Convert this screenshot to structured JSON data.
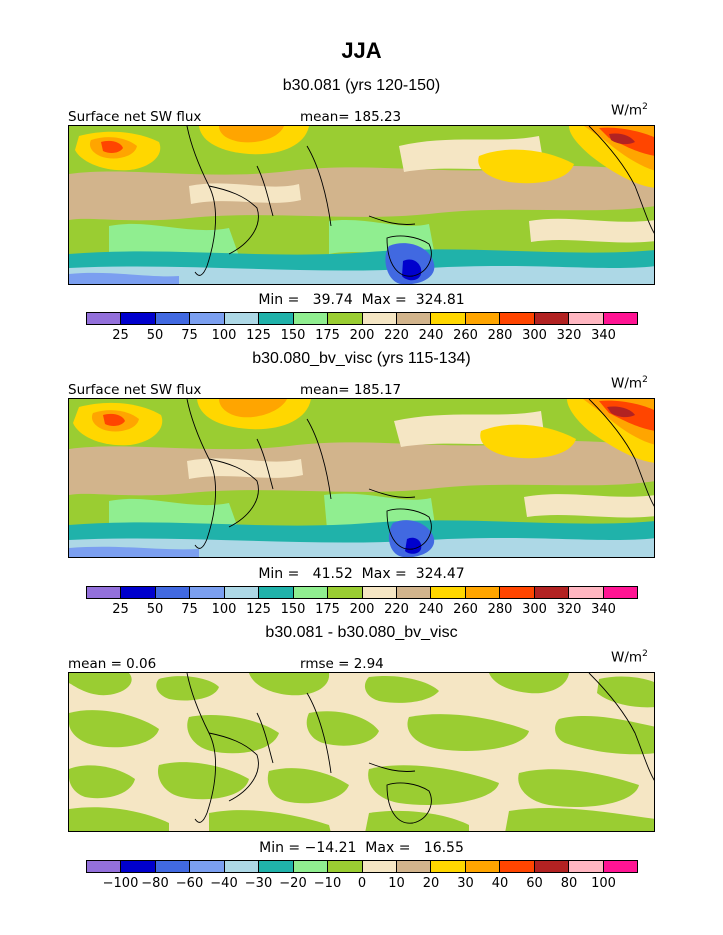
{
  "figure": {
    "season": "JJA"
  },
  "panels": [
    {
      "subtitle": "b30.081 (yrs 120-150)",
      "left_label": "Surface net SW flux",
      "center_label": "mean=  185.23",
      "units_base": "W/m",
      "units_sup": "2",
      "minmax": "Min =   39.74  Max =  324.81",
      "colorbar_ticks": [
        "25",
        "50",
        "75",
        "100",
        "125",
        "150",
        "175",
        "200",
        "220",
        "240",
        "260",
        "280",
        "300",
        "320",
        "340"
      ]
    },
    {
      "subtitle": "b30.080_bv_visc (yrs 115-134)",
      "left_label": "Surface net SW flux",
      "center_label": "mean=  185.17",
      "units_base": "W/m",
      "units_sup": "2",
      "minmax": "Min =   41.52  Max =  324.47",
      "colorbar_ticks": [
        "25",
        "50",
        "75",
        "100",
        "125",
        "150",
        "175",
        "200",
        "220",
        "240",
        "260",
        "280",
        "300",
        "320",
        "340"
      ]
    },
    {
      "subtitle": "b30.081 - b30.080_bv_visc",
      "left_label": "mean =    0.06",
      "center_label": "rmse =    2.94",
      "units_base": "W/m",
      "units_sup": "2",
      "minmax": "Min = −14.21  Max =   16.55",
      "colorbar_ticks": [
        "−100",
        "−80",
        "−60",
        "−40",
        "−30",
        "−20",
        "−10",
        "0",
        "10",
        "20",
        "30",
        "40",
        "60",
        "80",
        "100"
      ]
    }
  ],
  "colorbar_colors": [
    "#9370db",
    "#0000cd",
    "#4169e1",
    "#7b9ff0",
    "#add8e6",
    "#20b2aa",
    "#90ee90",
    "#9acd32",
    "#f5e6c4",
    "#d2b48c",
    "#ffd700",
    "#ffa500",
    "#ff4500",
    "#b22222",
    "#ffb6c1",
    "#ff1493"
  ]
}
